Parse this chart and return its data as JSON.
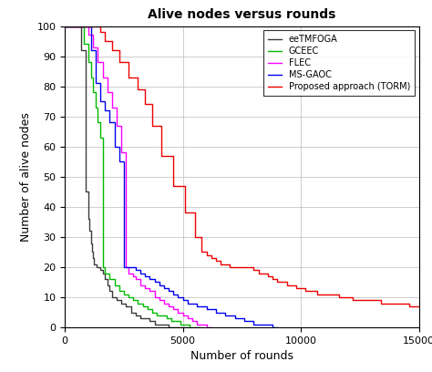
{
  "title": "Alive nodes versus rounds",
  "xlabel": "Number of rounds",
  "ylabel": "Number of alive nodes",
  "xlim": [
    0,
    15000
  ],
  "ylim": [
    0,
    100
  ],
  "xticks": [
    0,
    5000,
    10000,
    15000
  ],
  "yticks": [
    0,
    10,
    20,
    30,
    40,
    50,
    60,
    70,
    80,
    90,
    100
  ],
  "series": {
    "eeTMFOGA": {
      "color": "#3a3a3a",
      "x": [
        0,
        700,
        700,
        900,
        900,
        1000,
        1000,
        1050,
        1050,
        1100,
        1100,
        1150,
        1150,
        1200,
        1200,
        1250,
        1250,
        1350,
        1350,
        1500,
        1500,
        1600,
        1600,
        1700,
        1700,
        1800,
        1800,
        1900,
        1900,
        2000,
        2000,
        2200,
        2200,
        2400,
        2400,
        2600,
        2600,
        2800,
        2800,
        3000,
        3000,
        3200,
        3200,
        3400,
        3400,
        3600,
        3600,
        3800,
        3800,
        4000,
        4000,
        4200,
        4200,
        4400,
        4400,
        4600,
        4600,
        4800,
        4800,
        5000,
        5000,
        5200,
        5200
      ],
      "y": [
        100,
        100,
        92,
        92,
        45,
        45,
        36,
        36,
        32,
        32,
        28,
        28,
        25,
        25,
        23,
        23,
        21,
        21,
        20,
        20,
        19,
        19,
        18,
        18,
        16,
        16,
        14,
        14,
        12,
        12,
        10,
        10,
        9,
        9,
        8,
        8,
        7,
        7,
        5,
        5,
        4,
        4,
        3,
        3,
        3,
        3,
        2,
        2,
        1,
        1,
        1,
        1,
        1,
        1,
        0,
        0,
        0,
        0,
        0,
        0,
        0,
        0,
        0
      ]
    },
    "GCEEC": {
      "color": "#00bb00",
      "x": [
        0,
        800,
        800,
        1000,
        1000,
        1100,
        1100,
        1200,
        1200,
        1300,
        1300,
        1400,
        1400,
        1500,
        1500,
        1600,
        1600,
        1700,
        1700,
        1900,
        1900,
        2100,
        2100,
        2300,
        2300,
        2500,
        2500,
        2700,
        2700,
        2900,
        2900,
        3100,
        3100,
        3300,
        3300,
        3500,
        3500,
        3700,
        3700,
        3900,
        3900,
        4100,
        4100,
        4300,
        4300,
        4500,
        4500,
        4700,
        4700,
        4900,
        4900,
        5100,
        5100,
        5300,
        5300,
        5500,
        5500,
        5700,
        5700
      ],
      "y": [
        100,
        100,
        94,
        94,
        88,
        88,
        83,
        83,
        78,
        78,
        73,
        73,
        68,
        68,
        63,
        63,
        20,
        20,
        18,
        18,
        16,
        16,
        14,
        14,
        12,
        12,
        11,
        11,
        10,
        10,
        9,
        9,
        8,
        8,
        7,
        7,
        6,
        6,
        5,
        5,
        4,
        4,
        4,
        4,
        3,
        3,
        2,
        2,
        2,
        2,
        1,
        1,
        1,
        1,
        0,
        0,
        0,
        0,
        0
      ]
    },
    "FLEC": {
      "color": "#ff00ff",
      "x": [
        0,
        1000,
        1000,
        1200,
        1200,
        1400,
        1400,
        1600,
        1600,
        1800,
        1800,
        2000,
        2000,
        2200,
        2200,
        2400,
        2400,
        2600,
        2600,
        2700,
        2700,
        2900,
        2900,
        3000,
        3000,
        3200,
        3200,
        3400,
        3400,
        3600,
        3600,
        3800,
        3800,
        4000,
        4000,
        4200,
        4200,
        4400,
        4400,
        4600,
        4600,
        4800,
        4800,
        5000,
        5000,
        5200,
        5200,
        5400,
        5400,
        5600,
        5600,
        5800,
        5800,
        6000,
        6000,
        6200,
        6200
      ],
      "y": [
        100,
        100,
        97,
        97,
        93,
        93,
        88,
        88,
        83,
        83,
        78,
        78,
        73,
        73,
        67,
        67,
        58,
        58,
        20,
        20,
        18,
        18,
        17,
        17,
        16,
        16,
        14,
        14,
        13,
        13,
        12,
        12,
        10,
        10,
        9,
        9,
        8,
        8,
        7,
        7,
        6,
        6,
        5,
        5,
        4,
        4,
        3,
        3,
        2,
        2,
        1,
        1,
        1,
        1,
        0,
        0,
        0
      ]
    },
    "MS-GAOC": {
      "color": "#0000ee",
      "x": [
        0,
        1100,
        1100,
        1300,
        1300,
        1500,
        1500,
        1700,
        1700,
        1900,
        1900,
        2100,
        2100,
        2300,
        2300,
        2500,
        2500,
        2700,
        2700,
        2900,
        2900,
        3000,
        3000,
        3200,
        3200,
        3400,
        3400,
        3600,
        3600,
        3800,
        3800,
        4000,
        4000,
        4200,
        4200,
        4400,
        4400,
        4600,
        4600,
        4800,
        4800,
        5000,
        5000,
        5200,
        5200,
        5400,
        5400,
        5600,
        5600,
        5800,
        5800,
        6000,
        6000,
        6200,
        6200,
        6400,
        6400,
        6600,
        6600,
        6800,
        6800,
        7000,
        7000,
        7200,
        7200,
        7400,
        7400,
        7600,
        7600,
        7800,
        7800,
        8000,
        8000,
        8200,
        8200,
        8400,
        8400,
        8600,
        8600,
        8800,
        8800,
        9000,
        9000
      ],
      "y": [
        100,
        100,
        92,
        92,
        81,
        81,
        75,
        75,
        72,
        72,
        68,
        68,
        60,
        60,
        55,
        55,
        20,
        20,
        20,
        20,
        20,
        20,
        19,
        19,
        18,
        18,
        17,
        17,
        16,
        16,
        15,
        15,
        14,
        14,
        13,
        13,
        12,
        12,
        11,
        11,
        10,
        10,
        9,
        9,
        8,
        8,
        8,
        8,
        7,
        7,
        7,
        7,
        6,
        6,
        6,
        6,
        5,
        5,
        5,
        5,
        4,
        4,
        4,
        4,
        3,
        3,
        3,
        3,
        2,
        2,
        2,
        2,
        1,
        1,
        1,
        1,
        1,
        1,
        1,
        1,
        0,
        0,
        0
      ]
    },
    "TORM": {
      "color": "#ee0000",
      "x": [
        0,
        1500,
        1500,
        1700,
        1700,
        2000,
        2000,
        2300,
        2300,
        2700,
        2700,
        3100,
        3100,
        3400,
        3400,
        3700,
        3700,
        4100,
        4100,
        4600,
        4600,
        5100,
        5100,
        5500,
        5500,
        5800,
        5800,
        6000,
        6000,
        6200,
        6200,
        6400,
        6400,
        6600,
        6600,
        6800,
        6800,
        7000,
        7000,
        7200,
        7200,
        7400,
        7400,
        7600,
        7600,
        7800,
        7800,
        8000,
        8000,
        8200,
        8200,
        8400,
        8400,
        8600,
        8600,
        8800,
        8800,
        9000,
        9000,
        9200,
        9200,
        9400,
        9400,
        9600,
        9600,
        9800,
        9800,
        10000,
        10000,
        10200,
        10200,
        10400,
        10400,
        10700,
        10700,
        11000,
        11000,
        11300,
        11300,
        11600,
        11600,
        11900,
        11900,
        12200,
        12200,
        12500,
        12500,
        12800,
        12800,
        13100,
        13100,
        13400,
        13400,
        13700,
        13700,
        14000,
        14000,
        14300,
        14300,
        14600,
        14600,
        15000
      ],
      "y": [
        100,
        100,
        98,
        98,
        95,
        95,
        92,
        92,
        88,
        88,
        83,
        83,
        79,
        79,
        74,
        74,
        67,
        67,
        57,
        57,
        47,
        47,
        38,
        38,
        30,
        30,
        25,
        25,
        24,
        24,
        23,
        23,
        22,
        22,
        21,
        21,
        21,
        21,
        20,
        20,
        20,
        20,
        20,
        20,
        20,
        20,
        20,
        20,
        19,
        19,
        18,
        18,
        18,
        18,
        17,
        17,
        16,
        16,
        15,
        15,
        15,
        15,
        14,
        14,
        14,
        14,
        13,
        13,
        13,
        13,
        12,
        12,
        12,
        12,
        11,
        11,
        11,
        11,
        11,
        11,
        10,
        10,
        10,
        10,
        9,
        9,
        9,
        9,
        9,
        9,
        9,
        9,
        8,
        8,
        8,
        8,
        8,
        8,
        8,
        8,
        7,
        7
      ]
    }
  }
}
